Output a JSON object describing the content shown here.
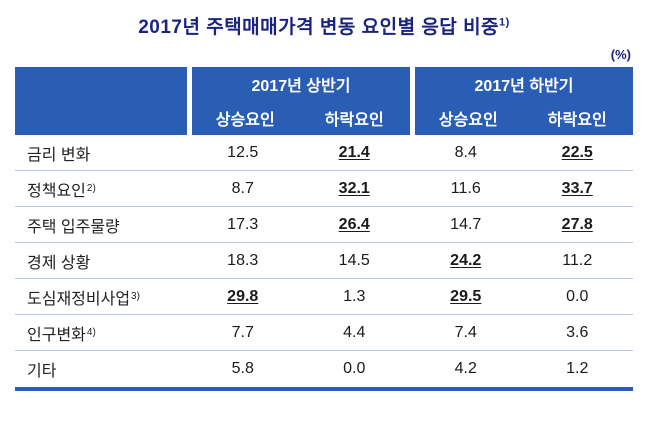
{
  "title": "2017년 주택매매가격 변동 요인별 응답 비중",
  "title_sup": "1)",
  "unit": "(%)",
  "colors": {
    "header_bg": "#2a5db4",
    "title": "#1a237e",
    "row_divider": "#b7c3d9",
    "bottom_border": "#2a5db4"
  },
  "chart_data": {
    "type": "table",
    "column_groups": [
      {
        "label": "2017년 상반기",
        "columns": [
          "상승요인",
          "하락요인"
        ]
      },
      {
        "label": "2017년 하반기",
        "columns": [
          "상승요인",
          "하락요인"
        ]
      }
    ],
    "rows": [
      {
        "label": "금리 변화",
        "sup": "",
        "values": [
          "12.5",
          "21.4",
          "8.4",
          "22.5"
        ],
        "emphasis": [
          1,
          3
        ]
      },
      {
        "label": "정책요인",
        "sup": "2)",
        "values": [
          "8.7",
          "32.1",
          "11.6",
          "33.7"
        ],
        "emphasis": [
          1,
          3
        ]
      },
      {
        "label": "주택 입주물량",
        "sup": "",
        "values": [
          "17.3",
          "26.4",
          "14.7",
          "27.8"
        ],
        "emphasis": [
          1,
          3
        ]
      },
      {
        "label": "경제 상황",
        "sup": "",
        "values": [
          "18.3",
          "14.5",
          "24.2",
          "11.2"
        ],
        "emphasis": [
          2
        ]
      },
      {
        "label": "도심재정비사업",
        "sup": "3)",
        "values": [
          "29.8",
          "1.3",
          "29.5",
          "0.0"
        ],
        "emphasis": [
          0,
          2
        ]
      },
      {
        "label": "인구변화",
        "sup": "4)",
        "values": [
          "7.7",
          "4.4",
          "7.4",
          "3.6"
        ],
        "emphasis": []
      },
      {
        "label": "기타",
        "sup": "",
        "values": [
          "5.8",
          "0.0",
          "4.2",
          "1.2"
        ],
        "emphasis": []
      }
    ]
  }
}
